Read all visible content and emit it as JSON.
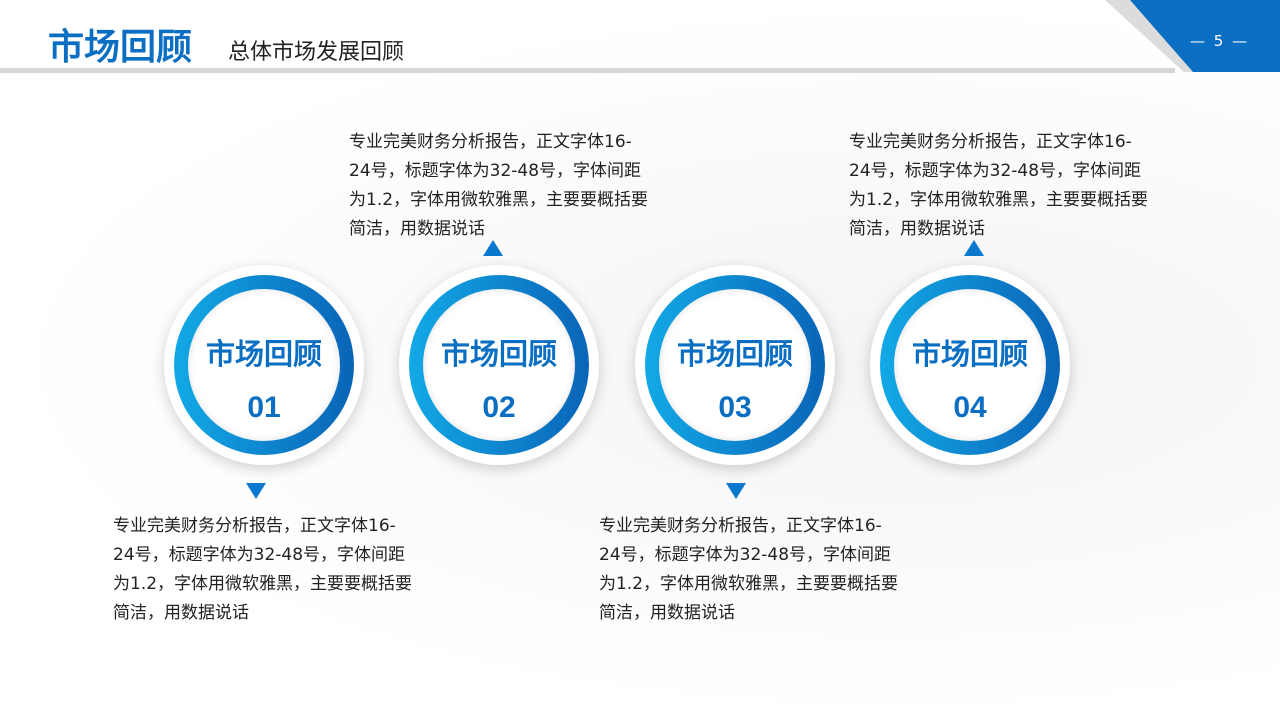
{
  "header": {
    "title": "市场回顾",
    "subtitle": "总体市场发展回顾",
    "page_number": "— 5 —"
  },
  "accent_color": "#0a6fc2",
  "items": [
    {
      "title": "市场回顾",
      "number": "01",
      "desc": "专业完美财务分析报告，正文字体16-24号，标题字体为32-48号，字体间距为1.2，字体用微软雅黑，主要要概括要简洁，用数据说话",
      "arrow": "down"
    },
    {
      "title": "市场回顾",
      "number": "02",
      "desc": "专业完美财务分析报告，正文字体16-24号，标题字体为32-48号，字体间距为1.2，字体用微软雅黑，主要要概括要简洁，用数据说话",
      "arrow": "up"
    },
    {
      "title": "市场回顾",
      "number": "03",
      "desc": "专业完美财务分析报告，正文字体16-24号，标题字体为32-48号，字体间距为1.2，字体用微软雅黑，主要要概括要简洁，用数据说话",
      "arrow": "down"
    },
    {
      "title": "市场回顾",
      "number": "04",
      "desc": "专业完美财务分析报告，正文字体16-24号，标题字体为32-48号，字体间距为1.2，字体用微软雅黑，主要要概括要简洁，用数据说话",
      "arrow": "up"
    }
  ]
}
